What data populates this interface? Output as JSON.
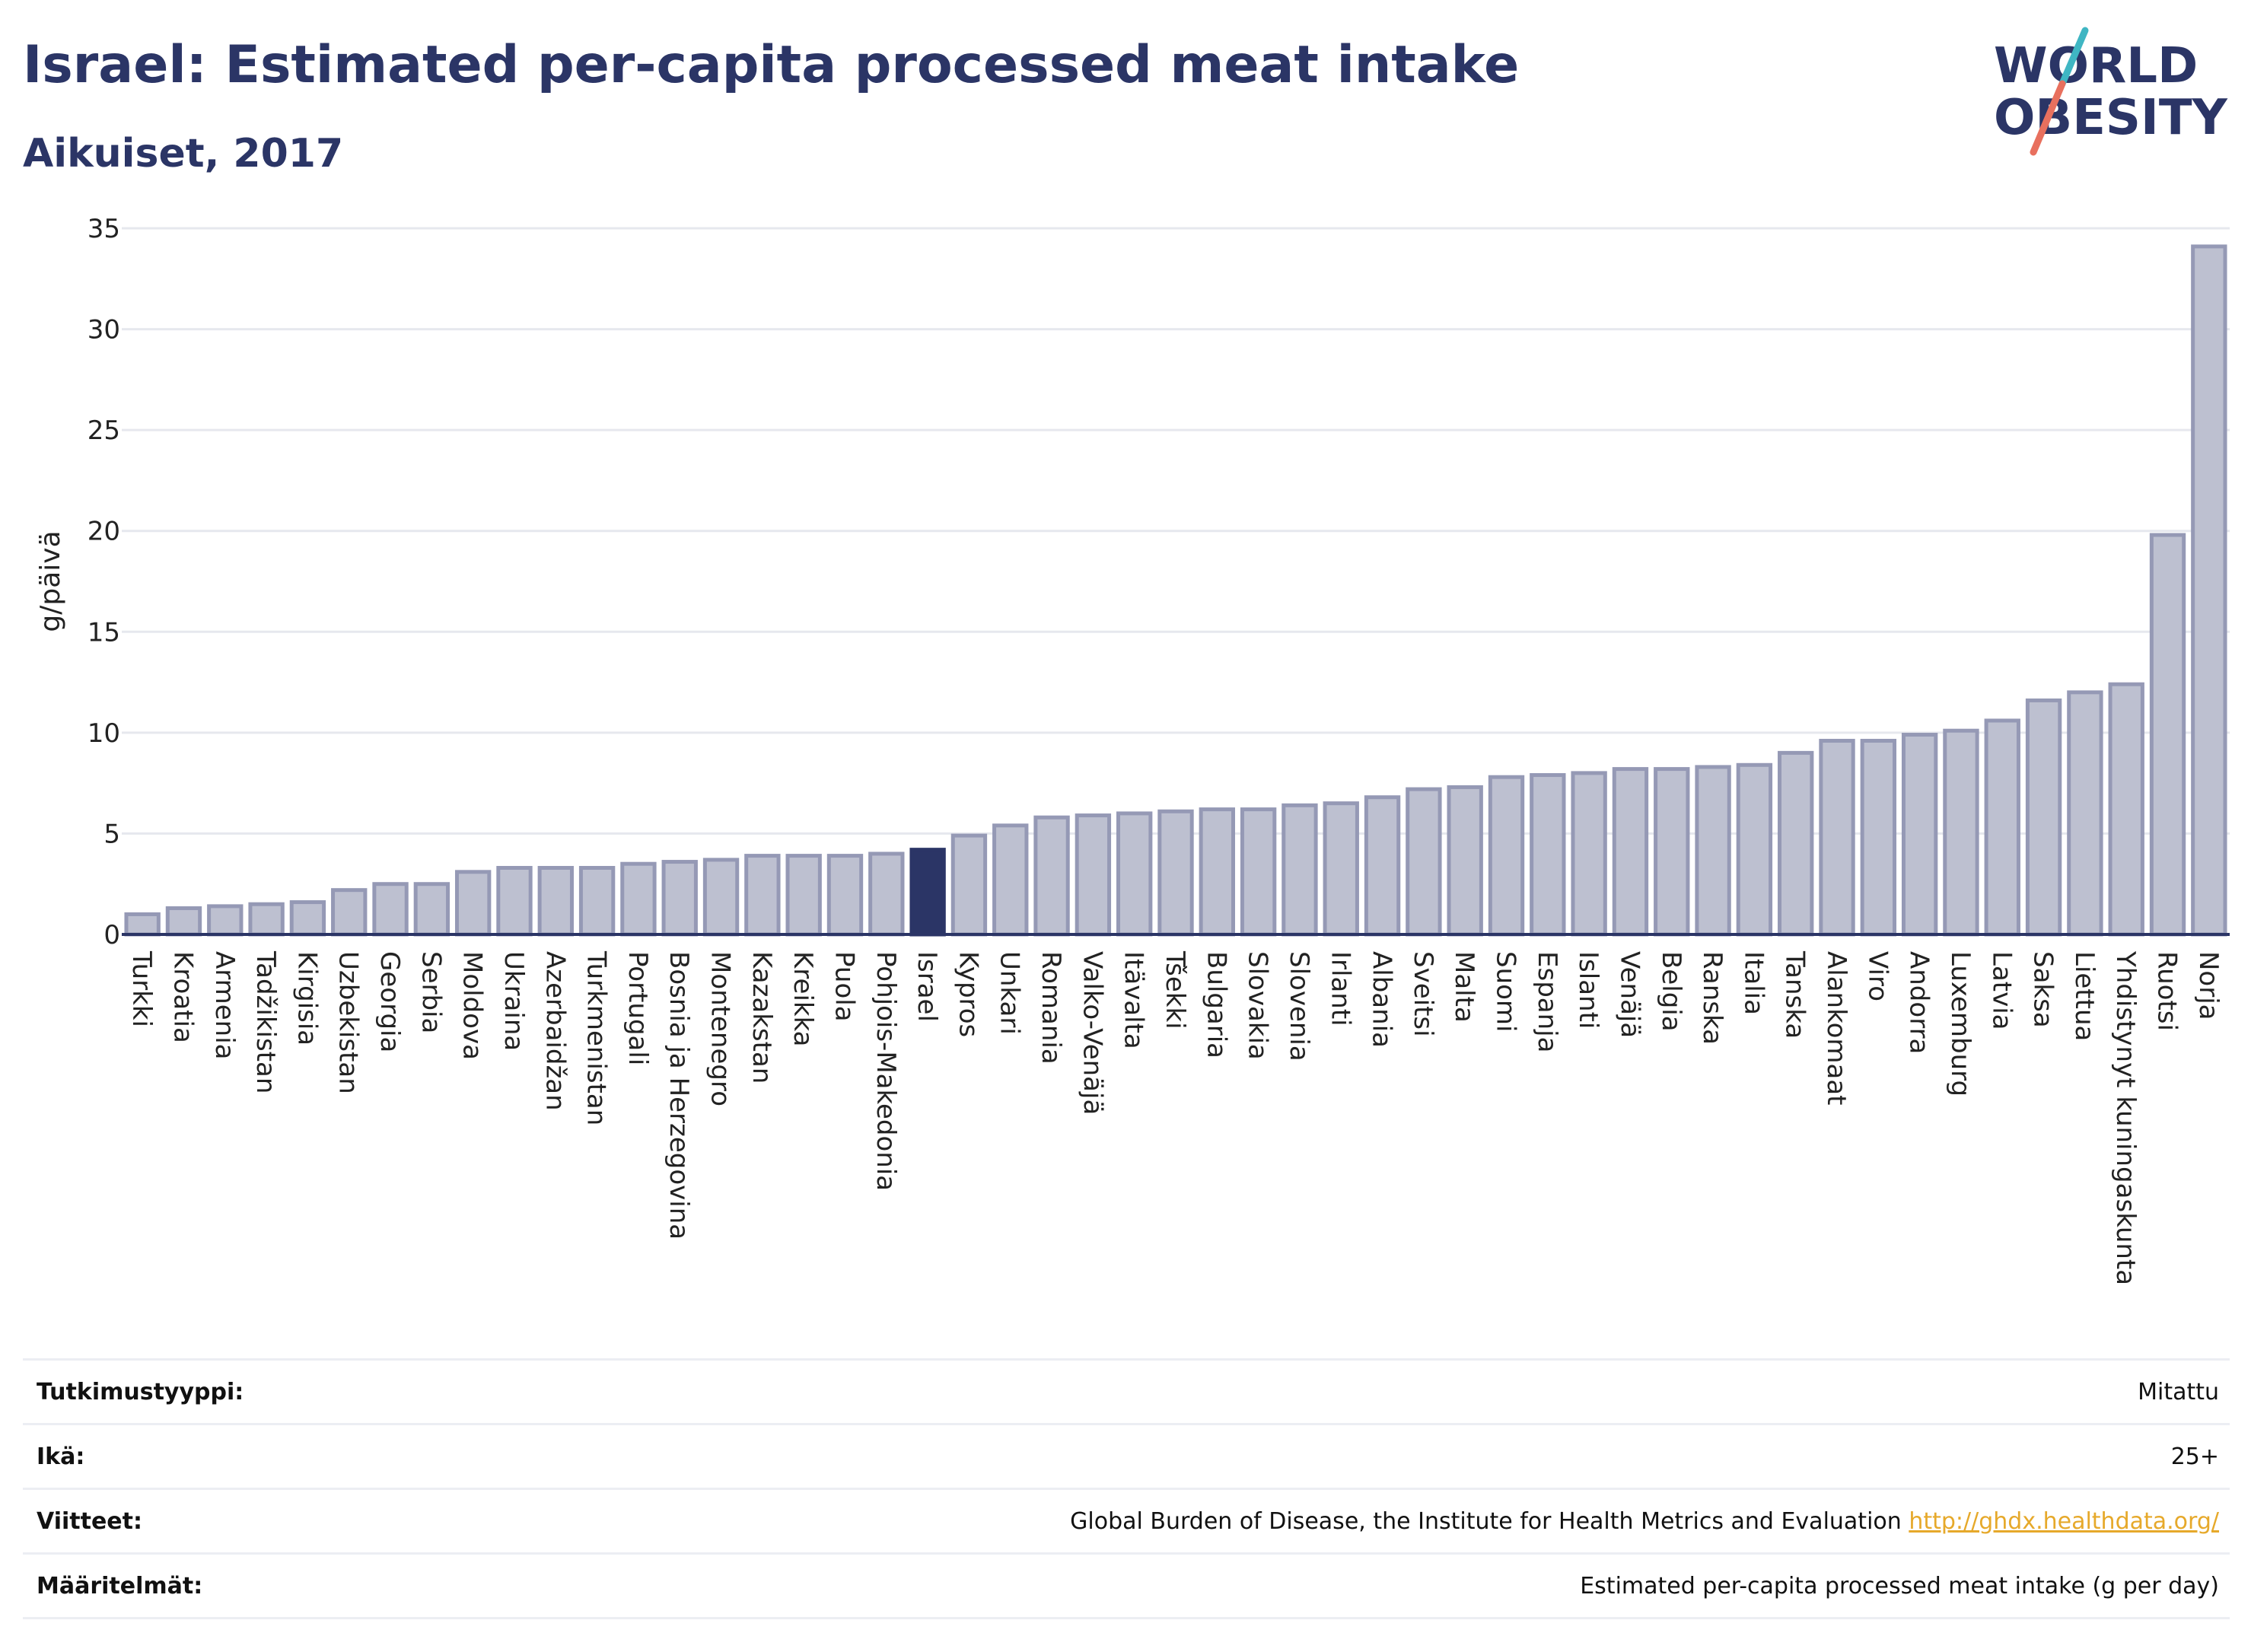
{
  "header": {
    "title": "Israel: Estimated per-capita processed meat intake",
    "subtitle": "Aikuiset, 2017",
    "logo_text_line1": "WORLD",
    "logo_text_line2": "OBESITY"
  },
  "colors": {
    "highlight": "#2b3566",
    "bar": "#bdc0d0",
    "bar_border": "#9599b5",
    "text": "#2b3566",
    "link": "#e6a92b",
    "logo_teal": "#3fb6c3",
    "logo_coral": "#e8705e"
  },
  "chart_data": {
    "type": "bar",
    "ylabel": "g/päivä",
    "ylim": [
      0,
      35
    ],
    "yticks": [
      0,
      5,
      10,
      15,
      20,
      25,
      30,
      35
    ],
    "grid": true,
    "highlight": "Israel",
    "categories": [
      "Turkki",
      "Kroatia",
      "Armenia",
      "Tadžikistan",
      "Kirgisia",
      "Uzbekistan",
      "Georgia",
      "Serbia",
      "Moldova",
      "Ukraina",
      "Azerbaidžan",
      "Turkmenistan",
      "Portugali",
      "Bosnia ja Herzegovina",
      "Montenegro",
      "Kazakstan",
      "Kreikka",
      "Puola",
      "Pohjois-Makedonia",
      "Israel",
      "Kypros",
      "Unkari",
      "Romania",
      "Valko-Venäjä",
      "Itävalta",
      "Tšekki",
      "Bulgaria",
      "Slovakia",
      "Slovenia",
      "Irlanti",
      "Albania",
      "Sveitsi",
      "Malta",
      "Suomi",
      "Espanja",
      "Islanti",
      "Venäjä",
      "Belgia",
      "Ranska",
      "Italia",
      "Tanska",
      "Alankomaat",
      "Viro",
      "Andorra",
      "Luxemburg",
      "Latvia",
      "Saksa",
      "Liettua",
      "Yhdistynyt kuningaskunta",
      "Ruotsi",
      "Norja"
    ],
    "values": [
      1.0,
      1.3,
      1.4,
      1.5,
      1.6,
      2.2,
      2.5,
      2.5,
      3.1,
      3.3,
      3.3,
      3.3,
      3.5,
      3.6,
      3.7,
      3.9,
      3.9,
      3.9,
      4.0,
      4.2,
      4.9,
      5.4,
      5.8,
      5.9,
      6.0,
      6.1,
      6.2,
      6.2,
      6.4,
      6.5,
      6.8,
      7.2,
      7.3,
      7.8,
      7.9,
      8.0,
      8.2,
      8.2,
      8.3,
      8.4,
      9.0,
      9.6,
      9.6,
      9.9,
      10.1,
      10.6,
      11.6,
      12.0,
      12.4,
      19.8,
      34.1
    ]
  },
  "info": [
    {
      "label": "Tutkimustyyppi:",
      "value": "Mitattu",
      "link": ""
    },
    {
      "label": "Ikä:",
      "value": "25+",
      "link": ""
    },
    {
      "label": "Viitteet:",
      "value": "Global Burden of Disease, the Institute for Health Metrics and Evaluation ",
      "link": "http://ghdx.healthdata.org/"
    },
    {
      "label": "Määritelmät:",
      "value": "Estimated per-capita processed meat intake (g per day)",
      "link": ""
    }
  ]
}
